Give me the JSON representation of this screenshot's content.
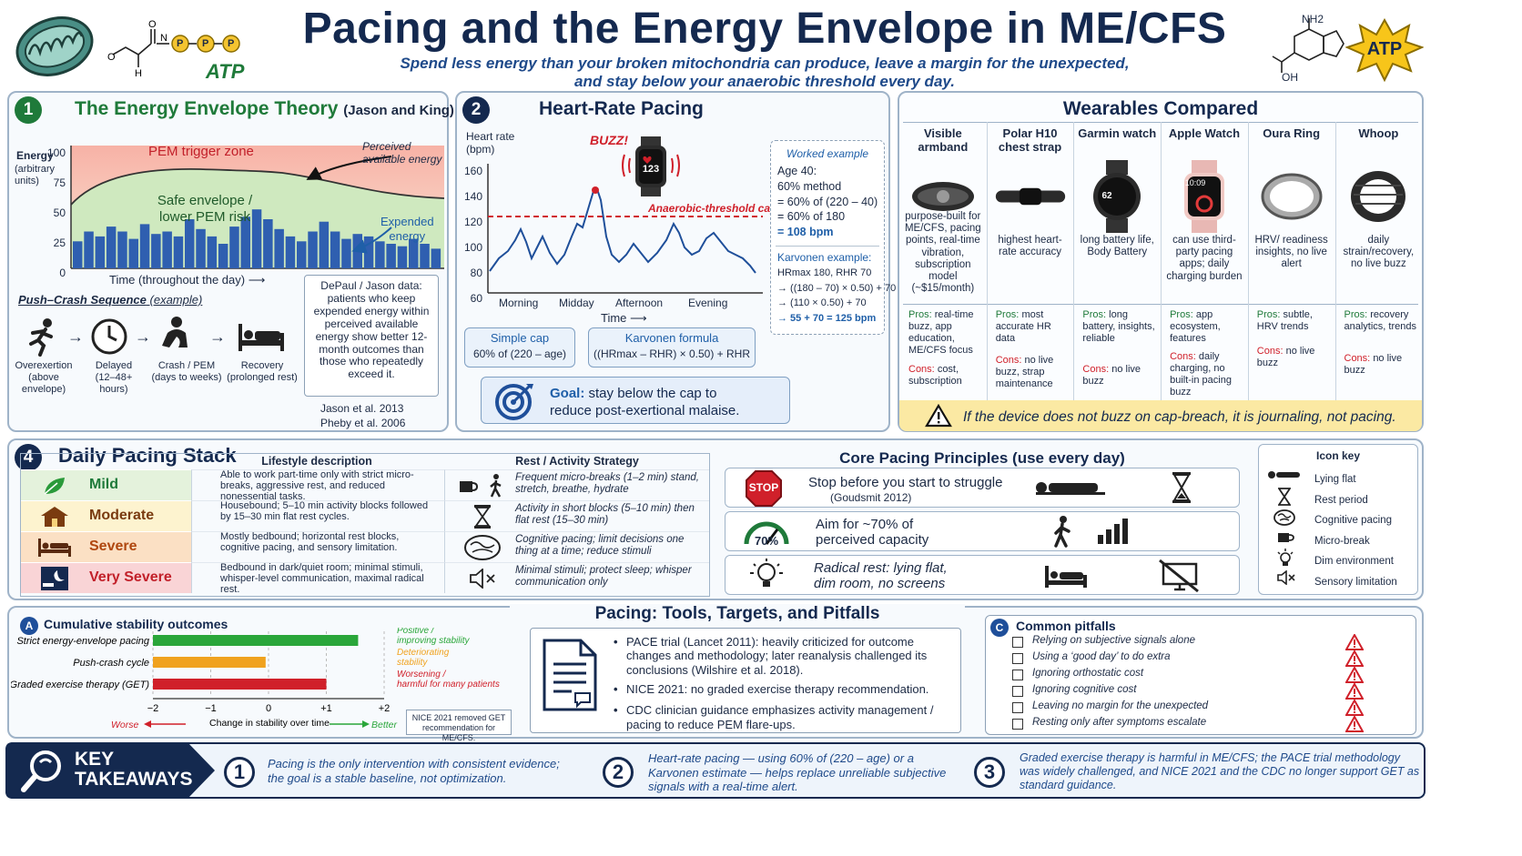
{
  "header": {
    "title": "Pacing and the Energy Envelope in ME/CFS",
    "subtitle_line1": "Spend less energy than your broken mitochondria can produce, leave a margin for the unexpected,",
    "subtitle_line2": "and stay below your anaerobic threshold every day.",
    "atp_label": "ATP",
    "atp_badge": "ATP",
    "nh2": "NH2",
    "oh": "OH",
    "p": "P"
  },
  "panel1": {
    "number": "1",
    "title": "The Energy Envelope Theory",
    "title_note": "(Jason and King)",
    "y_axis_label": "Energy",
    "y_axis_units": "(arbitrary units)",
    "y_ticks": [
      "100",
      "75",
      "50",
      "25",
      "0"
    ],
    "pem_zone": "PEM trigger zone",
    "safe_zone_1": "Safe envelope /",
    "safe_zone_2": "lower PEM risk",
    "perceived_1": "Perceived",
    "perceived_2": "available energy",
    "expended_1": "Expended",
    "expended_2": "energy",
    "x_axis": "Time (throughout the day) ⟶",
    "push_crash_title": "Push–Crash Sequence",
    "push_crash_note": "(example)",
    "steps": [
      {
        "label": "Overexertion",
        "sub": "(above envelope)",
        "icon": "running-person-icon"
      },
      {
        "label": "Delayed",
        "sub": "(12–48+ hours)",
        "icon": "clock-icon"
      },
      {
        "label": "Crash / PEM",
        "sub": "(days to weeks)",
        "icon": "crash-person-icon"
      },
      {
        "label": "Recovery",
        "sub": "(prolonged rest)",
        "icon": "bed-icon"
      }
    ],
    "depaul_text": "DePaul / Jason data: patients who keep expended energy within perceived available energy show better 12-month outcomes than those who repeatedly exceed it.",
    "cite1": "Jason et al. 2013",
    "cite2": "Pheby et al. 2006"
  },
  "panel2": {
    "number": "2",
    "title": "Heart-Rate Pacing",
    "y_label_1": "Heart rate",
    "y_label_2": "(bpm)",
    "y_ticks": [
      "160",
      "140",
      "120",
      "100",
      "80",
      "60"
    ],
    "buzz": "BUZZ!",
    "watch_value": "123",
    "cap_label": "Anaerobic-threshold cap",
    "x_ticks": [
      "Morning",
      "Midday",
      "Afternoon",
      "Evening"
    ],
    "x_label": "Time ⟶",
    "worked_title": "Worked example",
    "worked_lines": [
      "Age 40:",
      "60% method",
      "= 60% of (220 – 40)",
      "= 60% of 180",
      "= 108 bpm"
    ],
    "karvonen_title": "Karvonen example:",
    "karvonen_lines": [
      "HRmax 180, RHR 70",
      "→ ((180 – 70) × 0.50) + 70",
      "→ (110 × 0.50) + 70",
      "→ 55 + 70 = 125 bpm"
    ],
    "simple_cap_title": "Simple cap",
    "simple_cap_formula": "60% of (220 – age)",
    "karvonen_formula_title": "Karvonen formula",
    "karvonen_formula": "((HRmax – RHR) × 0.50) + RHR",
    "goal_bold": "Goal:",
    "goal_rest": "stay below the cap to",
    "goal_line2": "reduce post-exertional malaise."
  },
  "panel3": {
    "title": "Wearables Compared",
    "devices": [
      {
        "name": "Visible armband",
        "desc": "purpose-built for ME/CFS, pacing points, real-time vibration, subscription model (~$15/month)",
        "pros": "real-time buzz, app education, ME/CFS focus",
        "cons": "cost, subscription"
      },
      {
        "name": "Polar H10 chest strap",
        "desc": "highest heart-rate accuracy",
        "pros": "most accurate HR data",
        "cons": "no live buzz, strap maintenance"
      },
      {
        "name": "Garmin watch",
        "desc": "long battery life, Body Battery",
        "pros": "long battery, insights, reliable",
        "cons": "no live buzz"
      },
      {
        "name": "Apple Watch",
        "desc": "can use third-party pacing apps; daily charging burden",
        "pros": "app ecosystem, features",
        "cons": "daily charging, no built-in pacing buzz"
      },
      {
        "name": "Oura Ring",
        "desc": "HRV/ readiness insights, no live alert",
        "pros": "subtle, HRV trends",
        "cons": "no live buzz"
      },
      {
        "name": "Whoop",
        "desc": "daily strain/recovery, no live buzz",
        "pros": "recovery analytics, trends",
        "cons": "no live buzz"
      }
    ],
    "pros_label": "Pros:",
    "cons_label": "Cons:",
    "garmin_screen": "62",
    "apple_screen": "10:09",
    "warning": "If the device does not buzz on cap-breach, it is journaling, not pacing."
  },
  "panel4": {
    "number": "4",
    "title": "Daily Pacing Stack",
    "col1": "Lifestyle description",
    "col2": "Rest / Activity Strategy",
    "rows": [
      {
        "level": "Mild",
        "lifestyle": "Able to work part-time only with strict micro-breaks, aggressive rest, and reduced nonessential tasks.",
        "strategy": "Frequent micro-breaks (1–2 min) stand, stretch, breathe, hydrate"
      },
      {
        "level": "Moderate",
        "lifestyle": "Housebound; 5–10 min activity blocks followed by 15–30 min flat rest cycles.",
        "strategy": "Activity in short blocks (5–10 min) then flat rest (15–30 min)"
      },
      {
        "level": "Severe",
        "lifestyle": "Mostly bedbound; horizontal rest blocks, cognitive pacing, and sensory limitation.",
        "strategy": "Cognitive pacing; limit decisions one thing at a time; reduce stimuli"
      },
      {
        "level": "Very Severe",
        "lifestyle": "Bedbound in dark/quiet room; minimal stimuli, whisper-level communication, maximal radical rest.",
        "strategy": "Minimal stimuli; protect sleep; whisper communication only"
      }
    ],
    "row_colors": [
      "#e4f2dc",
      "#fdf3cf",
      "#fbe0c4",
      "#f9d4d6"
    ]
  },
  "principles": {
    "title": "Core Pacing Principles (use every day)",
    "items": [
      {
        "text": "Stop before you start to struggle",
        "sub": "(Goudsmit 2012)"
      },
      {
        "text": "Aim for ~70% of",
        "sub": "perceived capacity"
      },
      {
        "text": "Radical rest: lying flat,",
        "sub": "dim room, no screens"
      }
    ],
    "stop": "STOP",
    "gauge": "70%"
  },
  "icon_key": {
    "title": "Icon key",
    "items": [
      "Lying flat",
      "Rest period",
      "Cognitive pacing",
      "Micro-break",
      "Dim environment",
      "Sensory limitation"
    ]
  },
  "tools": {
    "title": "Pacing: Tools, Targets, and Pitfalls",
    "a_label": "A",
    "a_title": "Cumulative stability outcomes",
    "chart_data": {
      "type": "bar",
      "categories": [
        "Strict energy-envelope pacing",
        "Push-crash cycle",
        "Graded exercise therapy (GET)"
      ],
      "values": [
        1.55,
        -0.05,
        1.0
      ],
      "x_ticks": [
        "−2",
        "−1",
        "0",
        "+1",
        "+2"
      ],
      "xlim": [
        -2,
        2
      ],
      "xlabel": "Change in stability over time",
      "worse": "Worse",
      "better": "Better",
      "legend": [
        "Positive / improving stability",
        "Deteriorating stability",
        "Worsening / harmful for many patients"
      ],
      "colors": [
        "#2aa63a",
        "#f0a21e",
        "#d0202a"
      ]
    },
    "nice_note": "NICE 2021 removed GET recommendation for ME/CFS.",
    "bullets": [
      "PACE trial (Lancet 2011): heavily criticized for outcome changes and methodology; later reanalysis challenged its conclusions (Wilshire et al. 2018).",
      "NICE 2021: no graded exercise therapy recommendation.",
      "CDC clinician guidance emphasizes activity management / pacing to reduce PEM flare-ups."
    ],
    "c_label": "C",
    "c_title": "Common pitfalls",
    "pitfalls": [
      "Relying on subjective signals alone",
      "Using a ‘good day’ to do extra",
      "Ignoring orthostatic cost",
      "Ignoring cognitive cost",
      "Leaving no margin for the unexpected",
      "Resting only after symptoms escalate"
    ]
  },
  "takeaways": {
    "title_1": "KEY",
    "title_2": "TAKEAWAYS",
    "items": [
      {
        "num": "1",
        "text": "Pacing is the only intervention with consistent evidence; the goal is a stable baseline, not optimization."
      },
      {
        "num": "2",
        "text": "Heart-rate pacing — using 60% of (220 – age) or a Karvonen estimate — helps replace unreliable subjective signals with a real-time alert."
      },
      {
        "num": "3",
        "text": "Graded exercise therapy is harmful in ME/CFS; the PACE trial methodology was widely challenged, and NICE 2021 and the CDC no longer support GET as standard guidance."
      }
    ]
  },
  "colors": {
    "navy": "#14294f",
    "green": "#1f7a3a",
    "red": "#d0202a",
    "blue": "#1f5fa8",
    "accent_yellow": "#f7c51a"
  }
}
